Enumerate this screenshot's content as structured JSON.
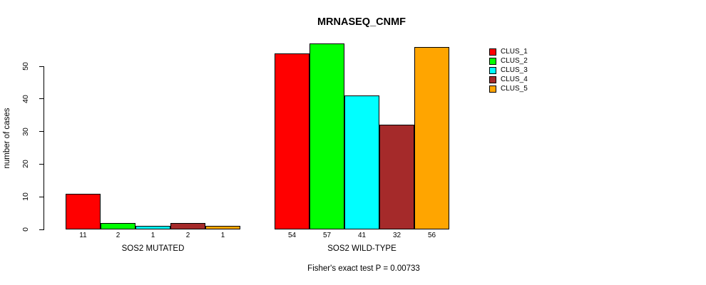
{
  "chart_data": {
    "type": "bar",
    "title": "MRNASEQ_CNMF",
    "ylabel": "number of cases",
    "xlabel": "",
    "categories": [
      "SOS2 MUTATED",
      "SOS2 WILD-TYPE"
    ],
    "series": [
      {
        "name": "CLUS_1",
        "color": "#FF0000",
        "values": [
          11,
          54
        ]
      },
      {
        "name": "CLUS_2",
        "color": "#00FF00",
        "values": [
          2,
          57
        ]
      },
      {
        "name": "CLUS_3",
        "color": "#00FFFF",
        "values": [
          1,
          41
        ]
      },
      {
        "name": "CLUS_4",
        "color": "#A52A2A",
        "values": [
          2,
          32
        ]
      },
      {
        "name": "CLUS_5",
        "color": "#FFA500",
        "values": [
          1,
          56
        ]
      }
    ],
    "yticks": [
      0,
      10,
      20,
      30,
      40,
      50
    ],
    "ylim": [
      0,
      57
    ],
    "grid": false,
    "bar_value_labels": true,
    "legend_position": "right-outside",
    "annotation": "Fisher's exact test P = 0.00733"
  }
}
